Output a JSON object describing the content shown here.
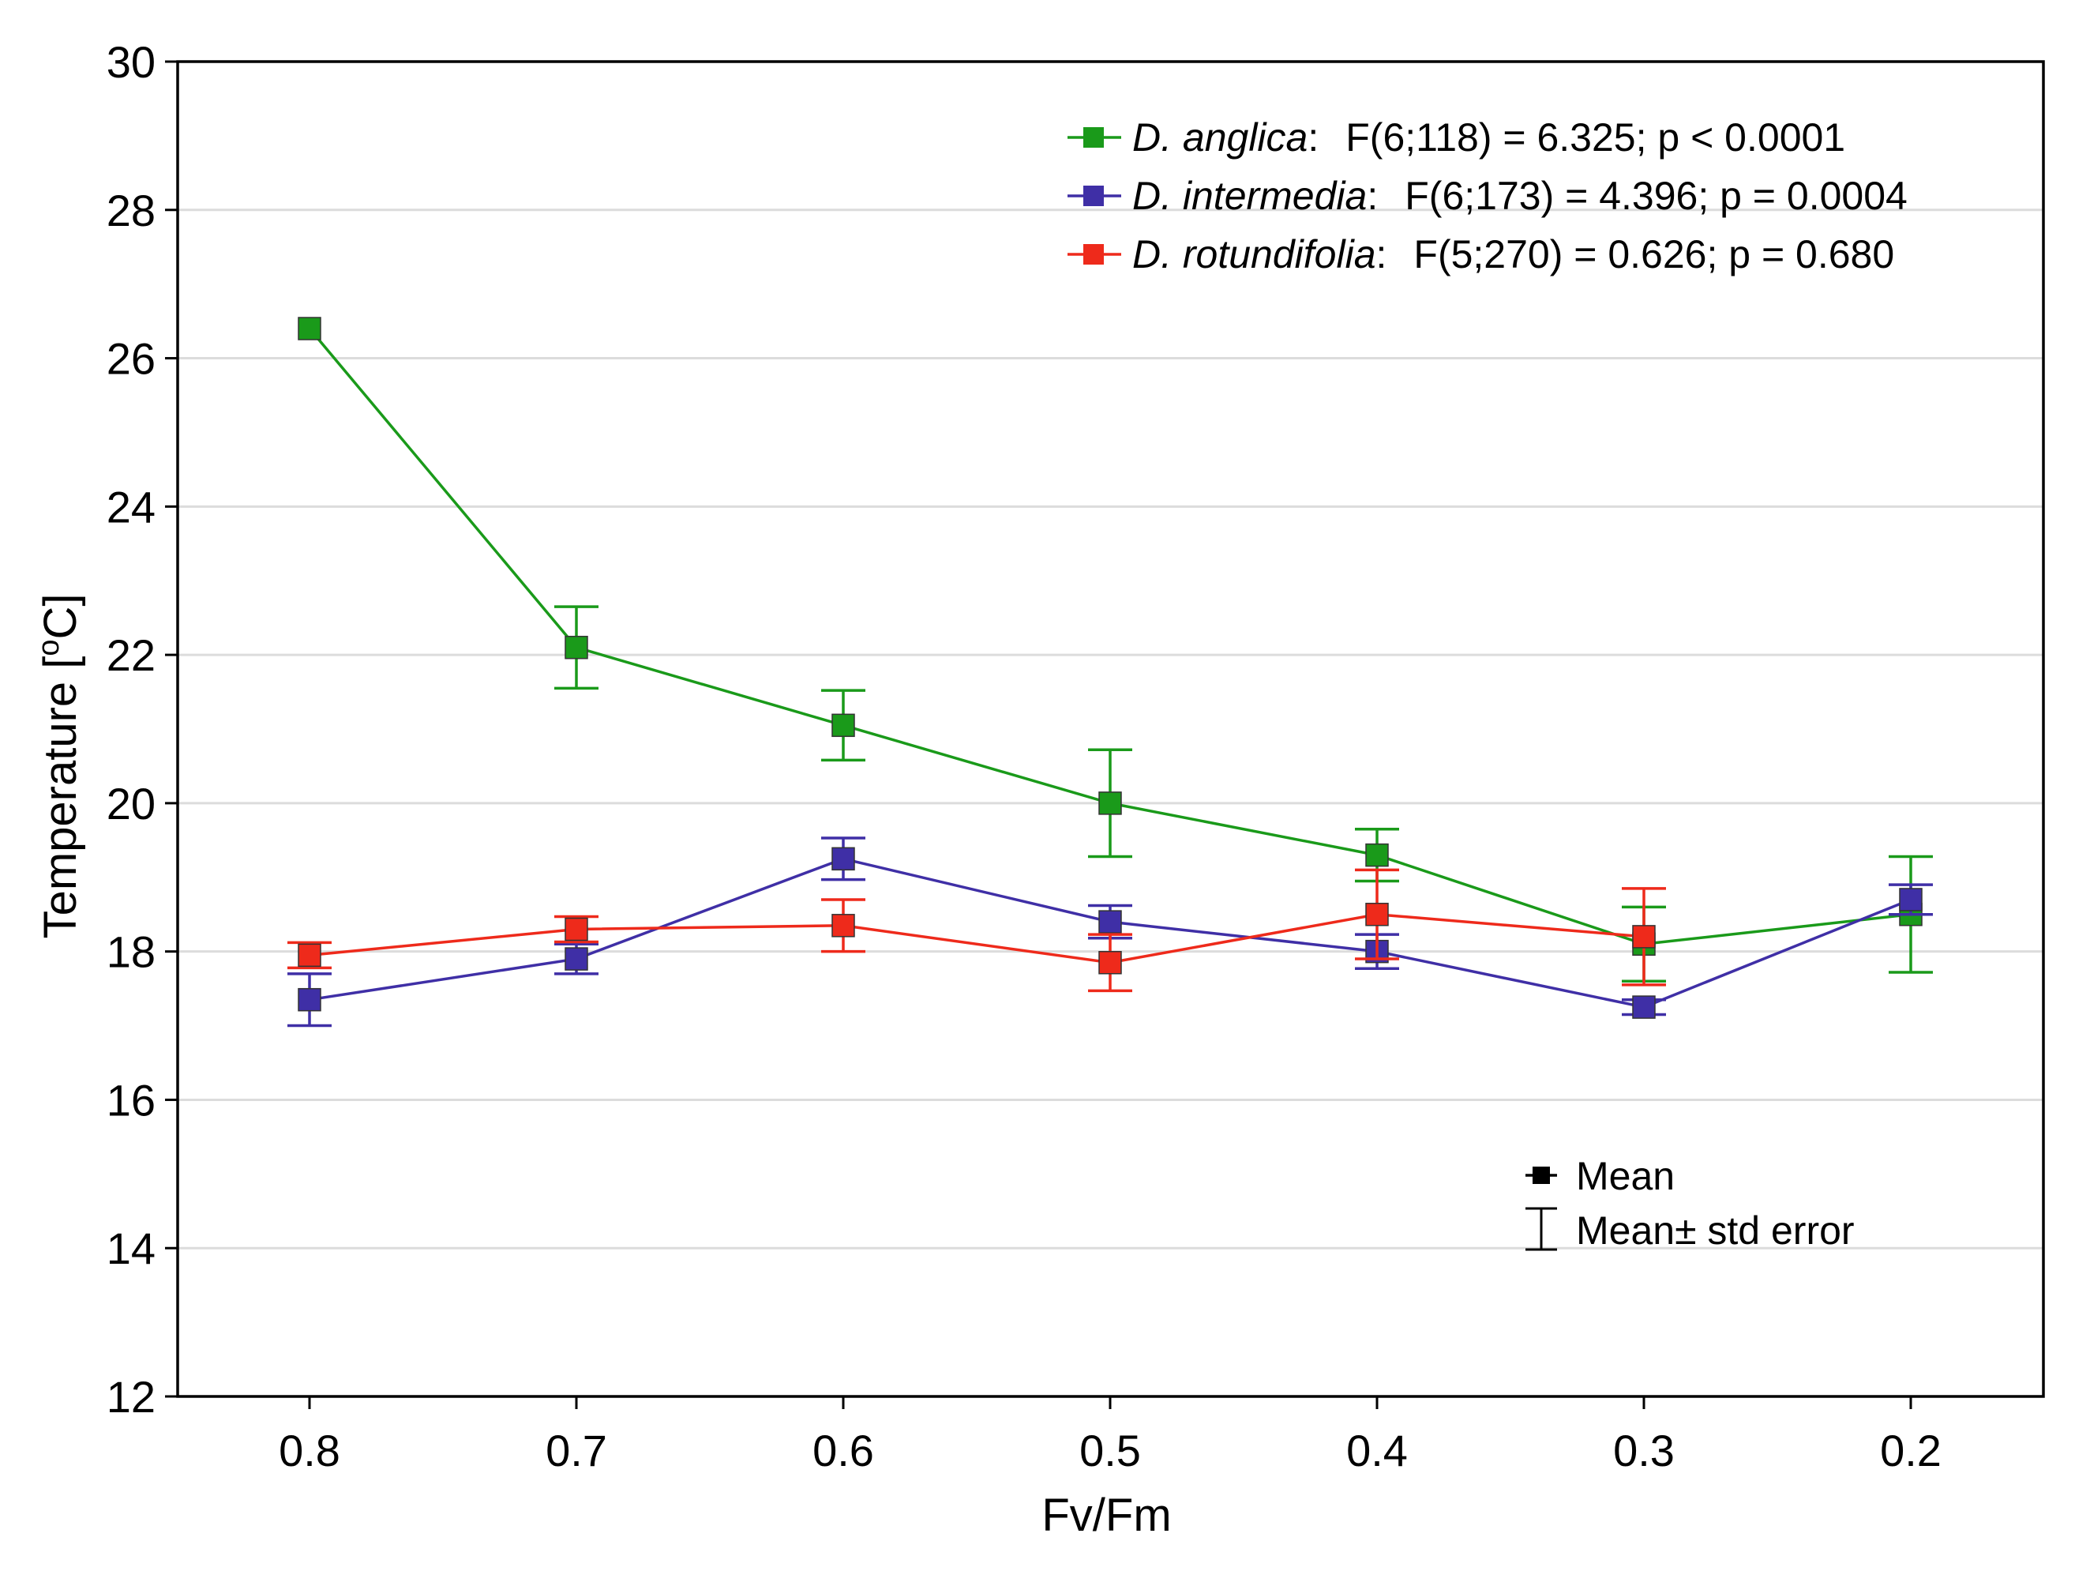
{
  "chart_data": {
    "type": "line",
    "title": "",
    "xlabel": "Fv/Fm",
    "ylabel": {
      "main": "Temperature [",
      "superscript": "o",
      "unit": "C]"
    },
    "categories": [
      "0.8",
      "0.7",
      "0.6",
      "0.5",
      "0.4",
      "0.3",
      "0.2"
    ],
    "ylim": [
      12,
      30
    ],
    "yticks": [
      "12",
      "14",
      "16",
      "18",
      "20",
      "22",
      "24",
      "26",
      "28",
      "30"
    ],
    "grid": "horizontal",
    "legend_position": "top-right",
    "series": [
      {
        "name": "D. anglica",
        "stat": "F(6;118) = 6.325; p < 0.0001",
        "color": "#1a9a1a",
        "values": [
          26.4,
          22.1,
          21.05,
          20.0,
          19.3,
          18.1,
          18.5
        ],
        "errors": [
          null,
          0.55,
          0.47,
          0.72,
          0.35,
          0.5,
          0.78
        ]
      },
      {
        "name": "D. intermedia",
        "stat": "F(6;173) = 4.396; p = 0.0004",
        "color": "#3f2fa6",
        "values": [
          17.35,
          17.9,
          19.25,
          18.4,
          18.0,
          17.25,
          18.7
        ],
        "errors": [
          0.35,
          0.2,
          0.28,
          0.22,
          0.23,
          0.1,
          0.2
        ]
      },
      {
        "name": "D. rotundifolia",
        "stat": "F(5;270) = 0.626; p = 0.680",
        "color": "#ee2a1b",
        "values": [
          17.95,
          18.3,
          18.35,
          17.85,
          18.5,
          18.2,
          null
        ],
        "errors": [
          0.17,
          0.17,
          0.35,
          0.38,
          0.6,
          0.65,
          null
        ]
      }
    ],
    "key": {
      "mean_label": "Mean",
      "error_label": "Mean± std error"
    }
  }
}
